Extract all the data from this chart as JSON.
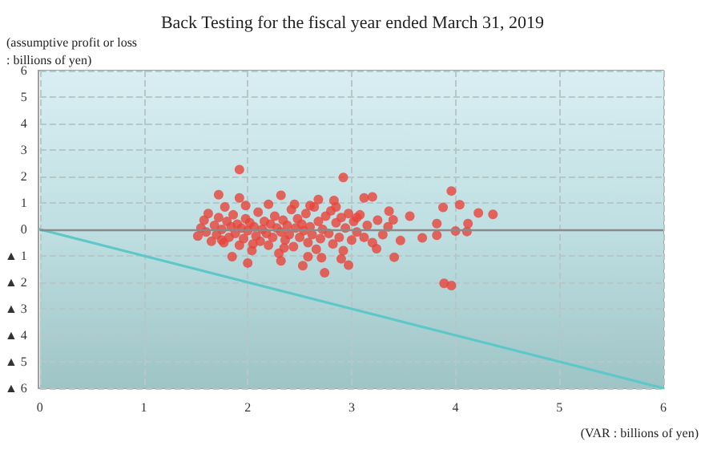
{
  "chart_data": {
    "type": "scatter",
    "title": "Back Testing for the fiscal year ended March 31, 2019",
    "ylabel": "(assumptive profit or loss\n: billions of yen)",
    "xlabel": "(VAR : billions of yen)",
    "xlim": [
      0,
      6
    ],
    "xticks": [
      0,
      1,
      2,
      3,
      4,
      5,
      6
    ],
    "ylim": [
      -6,
      6
    ],
    "yticks": [
      {
        "value": -6,
        "label": "▲ 6"
      },
      {
        "value": -5,
        "label": "▲ 5"
      },
      {
        "value": -4,
        "label": "▲ 4"
      },
      {
        "value": -3,
        "label": "▲ 3"
      },
      {
        "value": -2,
        "label": "▲ 2"
      },
      {
        "value": -1,
        "label": "▲ 1"
      },
      0,
      1,
      2,
      3,
      4,
      5,
      6
    ],
    "grid": true,
    "marker": "circle",
    "ref_lines": [
      {
        "axis": "y",
        "value": 0,
        "color": "#8a8a8a",
        "line_style": "solid"
      }
    ],
    "series": [
      {
        "color": "#e8433a",
        "x": [
          1.92,
          2.92,
          1.72,
          1.92,
          2.32,
          3.12,
          3.2,
          2.68,
          2.83,
          1.78,
          3.96,
          4.04,
          3.88,
          4.22,
          4.36,
          3.56,
          3.36,
          3.4,
          3.82,
          4.12,
          4.0,
          4.11,
          3.82,
          3.68,
          3.47,
          3.41,
          3.89,
          3.96,
          1.85,
          2.0,
          2.74,
          2.53,
          2.97,
          2.32,
          2.9,
          3.24,
          2.58,
          2.71,
          1.52,
          1.55,
          1.58,
          1.6,
          1.62,
          1.65,
          1.68,
          1.7,
          1.72,
          1.75,
          1.77,
          1.8,
          1.82,
          1.84,
          1.86,
          1.88,
          1.9,
          1.92,
          1.94,
          1.96,
          1.98,
          2.0,
          2.02,
          2.04,
          2.06,
          2.08,
          2.1,
          2.12,
          2.14,
          2.16,
          2.18,
          2.2,
          2.22,
          2.24,
          2.26,
          2.28,
          2.3,
          2.32,
          2.34,
          2.36,
          2.38,
          2.4,
          2.42,
          2.44,
          2.46,
          2.48,
          2.5,
          2.52,
          2.54,
          2.56,
          2.58,
          2.6,
          2.62,
          2.64,
          2.66,
          2.68,
          2.7,
          2.72,
          2.75,
          2.78,
          2.8,
          2.82,
          2.85,
          2.88,
          2.9,
          2.92,
          2.94,
          2.97,
          3.0,
          3.02,
          3.05,
          3.08,
          3.12,
          3.15,
          3.2,
          3.25,
          3.3,
          3.35,
          1.98,
          2.2,
          2.45,
          2.6,
          2.85,
          2.05,
          2.35,
          1.75,
          3.05
        ],
        "values": [
          2.26,
          1.96,
          1.31,
          1.19,
          1.29,
          1.19,
          1.23,
          1.13,
          1.09,
          0.85,
          1.45,
          0.93,
          0.83,
          0.62,
          0.57,
          0.5,
          0.69,
          0.36,
          0.22,
          0.22,
          -0.06,
          -0.08,
          -0.22,
          -0.32,
          -0.42,
          -1.05,
          -2.04,
          -2.12,
          -1.03,
          -1.27,
          -1.64,
          -1.37,
          -1.35,
          -1.19,
          -1.11,
          -0.73,
          -1.03,
          -1.07,
          -0.25,
          0.05,
          0.35,
          -0.1,
          0.6,
          -0.45,
          0.15,
          -0.2,
          0.45,
          0.0,
          -0.5,
          0.3,
          -0.3,
          0.1,
          0.55,
          -0.15,
          0.2,
          -0.6,
          0.05,
          -0.35,
          0.4,
          -0.05,
          0.25,
          -0.8,
          0.1,
          -0.25,
          0.65,
          -0.45,
          0.0,
          0.3,
          -0.15,
          -0.6,
          0.2,
          -0.3,
          0.5,
          0.05,
          -0.9,
          -0.1,
          0.35,
          -0.4,
          0.15,
          -0.2,
          0.75,
          -0.65,
          0.05,
          0.4,
          -0.3,
          0.2,
          -0.05,
          0.6,
          -0.5,
          0.1,
          -0.2,
          0.85,
          -0.75,
          0.3,
          -0.35,
          0.0,
          0.5,
          -0.15,
          0.7,
          -0.55,
          0.25,
          -0.3,
          0.45,
          -0.8,
          0.05,
          0.6,
          -0.4,
          0.3,
          -0.1,
          0.55,
          -0.3,
          0.15,
          -0.5,
          0.35,
          -0.2,
          0.1,
          0.9,
          0.95,
          0.95,
          0.9,
          0.85,
          -0.55,
          -0.7,
          -0.4,
          0.45
        ]
      },
      {
        "type": "line",
        "color": "#5ec8c8",
        "marker": "none",
        "line_style": "solid",
        "x": [
          0,
          6
        ],
        "values": [
          0,
          -6
        ]
      }
    ]
  }
}
